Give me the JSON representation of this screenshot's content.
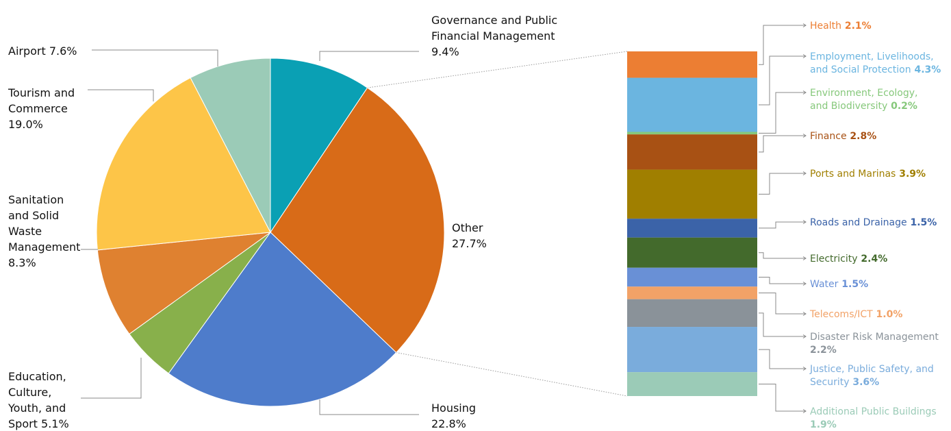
{
  "chart_data": {
    "type": "pie-of-bar",
    "pie": {
      "slices": [
        {
          "label_lines": [
            "Governance and Public",
            "Financial Management",
            "9.4%"
          ],
          "value": 9.4,
          "color": "#0aa0b4"
        },
        {
          "label_lines": [
            "Other",
            "27.7%"
          ],
          "value": 27.7,
          "color": "#d86b18"
        },
        {
          "label_lines": [
            "Housing",
            "22.8%"
          ],
          "value": 22.8,
          "color": "#4e7ccb"
        },
        {
          "label_lines": [
            "Education,",
            "Culture,",
            "Youth, and",
            "Sport 5.1%"
          ],
          "value": 5.1,
          "color": "#88b04b"
        },
        {
          "label_lines": [
            "Sanitation",
            "and Solid",
            "Waste",
            "Management",
            "8.3%"
          ],
          "value": 8.3,
          "color": "#df8130"
        },
        {
          "label_lines": [
            "Tourism and",
            "Commerce",
            "19.0%"
          ],
          "value": 19.0,
          "color": "#fdc548"
        },
        {
          "label_lines": [
            "Airport 7.6%"
          ],
          "value": 7.6,
          "color": "#9bcbb7"
        }
      ]
    },
    "other_breakdown": {
      "total": 27.7,
      "items": [
        {
          "name_lines": [
            "Health"
          ],
          "pct": "2.1%",
          "value": 2.1,
          "color": "#ec7e33"
        },
        {
          "name_lines": [
            "Employment, Livelihoods,",
            "and Social Protection"
          ],
          "pct": "4.3%",
          "value": 4.3,
          "color": "#6bb5e0"
        },
        {
          "name_lines": [
            "Environment, Ecology,",
            "and Biodiversity"
          ],
          "pct": "0.2%",
          "value": 0.2,
          "color": "#86c87b"
        },
        {
          "name_lines": [
            "Finance"
          ],
          "pct": "2.8%",
          "value": 2.8,
          "color": "#a85114"
        },
        {
          "name_lines": [
            "Ports and Marinas"
          ],
          "pct": "3.9%",
          "value": 3.9,
          "color": "#a07f00"
        },
        {
          "name_lines": [
            "Roads and Drainage"
          ],
          "pct": "1.5%",
          "value": 1.5,
          "color": "#3b63a8"
        },
        {
          "name_lines": [
            "Electricity"
          ],
          "pct": "2.4%",
          "value": 2.4,
          "color": "#436a2c"
        },
        {
          "name_lines": [
            "Water"
          ],
          "pct": "1.5%",
          "value": 1.5,
          "color": "#6990d6"
        },
        {
          "name_lines": [
            "Telecoms/ICT"
          ],
          "pct": "1.0%",
          "value": 1.0,
          "color": "#f2a267"
        },
        {
          "name_lines": [
            "Disaster Risk Management"
          ],
          "pct": "2.2%",
          "value": 2.2,
          "color": "#8a9299"
        },
        {
          "name_lines": [
            "Justice, Public Safety, and",
            "Security"
          ],
          "pct": "3.6%",
          "value": 3.6,
          "color": "#7aacdc"
        },
        {
          "name_lines": [
            "Additional Public Buildings"
          ],
          "pct": "1.9%",
          "value": 1.9,
          "color": "#9bcbb7"
        }
      ]
    }
  }
}
